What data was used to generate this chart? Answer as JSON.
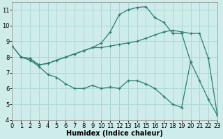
{
  "background_color": "#ceecea",
  "grid_color": "#aed8d4",
  "line_color": "#2e7d6e",
  "line1_x": [
    0,
    1,
    2,
    3,
    4,
    5,
    6,
    7,
    8,
    9,
    10,
    11,
    12,
    13,
    14,
    15,
    16,
    17,
    18,
    19,
    20,
    21,
    22,
    23
  ],
  "line1_y": [
    8.7,
    8.0,
    7.8,
    7.4,
    6.9,
    6.7,
    6.3,
    6.0,
    6.0,
    6.2,
    6.0,
    6.1,
    6.0,
    6.5,
    6.5,
    6.3,
    6.0,
    5.5,
    5.0,
    4.8,
    7.7,
    6.5,
    5.3,
    4.3
  ],
  "line2_x": [
    0,
    1,
    2,
    3,
    4,
    5,
    6,
    7,
    8,
    9,
    10,
    11,
    12,
    13,
    14,
    15,
    16,
    17,
    18,
    19,
    20,
    21,
    22,
    23
  ],
  "line2_y": [
    8.7,
    8.0,
    7.9,
    7.5,
    7.6,
    7.8,
    8.0,
    8.2,
    8.4,
    8.6,
    8.6,
    8.7,
    8.8,
    8.9,
    9.0,
    9.2,
    9.4,
    9.6,
    9.7,
    9.6,
    9.5,
    9.5,
    7.9,
    4.3
  ],
  "line3_x": [
    1,
    2,
    3,
    4,
    5,
    6,
    7,
    8,
    9,
    10,
    11,
    12,
    13,
    14,
    15,
    16,
    17,
    18,
    19,
    20
  ],
  "line3_y": [
    8.0,
    7.9,
    7.5,
    7.6,
    7.8,
    8.0,
    8.2,
    8.4,
    8.6,
    8.9,
    9.6,
    10.7,
    11.0,
    11.15,
    11.2,
    10.5,
    10.2,
    9.5,
    9.5,
    7.7
  ],
  "xlim": [
    0,
    23
  ],
  "ylim": [
    4,
    11.5
  ],
  "yticks": [
    4,
    5,
    6,
    7,
    8,
    9,
    10,
    11
  ],
  "xticks": [
    0,
    1,
    2,
    3,
    4,
    5,
    6,
    7,
    8,
    9,
    10,
    11,
    12,
    13,
    14,
    15,
    16,
    17,
    18,
    19,
    20,
    21,
    22,
    23
  ],
  "xlabel": "Humidex (Indice chaleur)",
  "xlabel_fontsize": 7,
  "tick_fontsize": 6
}
